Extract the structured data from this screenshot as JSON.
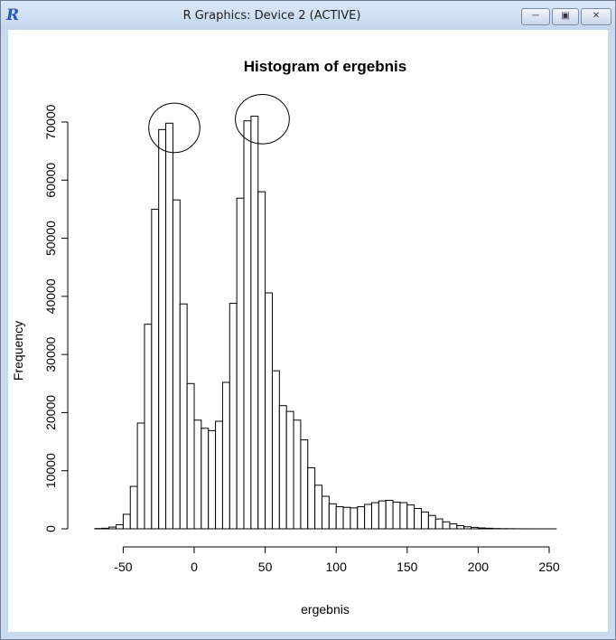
{
  "window": {
    "title": "R Graphics: Device 2 (ACTIVE)",
    "app_icon": "R",
    "buttons": {
      "minimize": "minimize-icon",
      "maximize": "maximize-icon",
      "close": "close-icon"
    }
  },
  "chart_data": {
    "type": "bar",
    "title": "Histogram of ergebnis",
    "xlabel": "ergebnis",
    "ylabel": "Frequency",
    "xlim": [
      -70,
      255
    ],
    "ylim": [
      0,
      72000
    ],
    "xticks": [
      -50,
      0,
      50,
      100,
      150,
      200,
      250
    ],
    "yticks": [
      0,
      10000,
      20000,
      30000,
      40000,
      50000,
      60000,
      70000
    ],
    "bin_width": 5,
    "bins_start": -70,
    "values": [
      50,
      100,
      300,
      700,
      2500,
      7300,
      18200,
      35200,
      55000,
      68700,
      69800,
      56600,
      38700,
      25000,
      18700,
      17300,
      16900,
      18500,
      25200,
      38800,
      56900,
      70200,
      71000,
      58000,
      40600,
      27200,
      21200,
      20200,
      18700,
      15300,
      10500,
      7500,
      5600,
      4300,
      3800,
      3700,
      3600,
      3800,
      4200,
      4500,
      4800,
      4900,
      4600,
      4500,
      4100,
      3500,
      2900,
      2300,
      1700,
      1200,
      850,
      550,
      350,
      250,
      150,
      100,
      50,
      30,
      20,
      10,
      5,
      3,
      2,
      1,
      1
    ],
    "annotations": [
      {
        "type": "ellipse",
        "label": "",
        "center_x": -14,
        "center_y": 69000,
        "width_x": 36,
        "height_y": 8500
      },
      {
        "type": "ellipse",
        "label": "",
        "center_x": 48,
        "center_y": 70500,
        "width_x": 38,
        "height_y": 8500
      }
    ],
    "grid": false,
    "colors": {
      "fill": "#ffffff",
      "stroke": "#000000"
    }
  }
}
